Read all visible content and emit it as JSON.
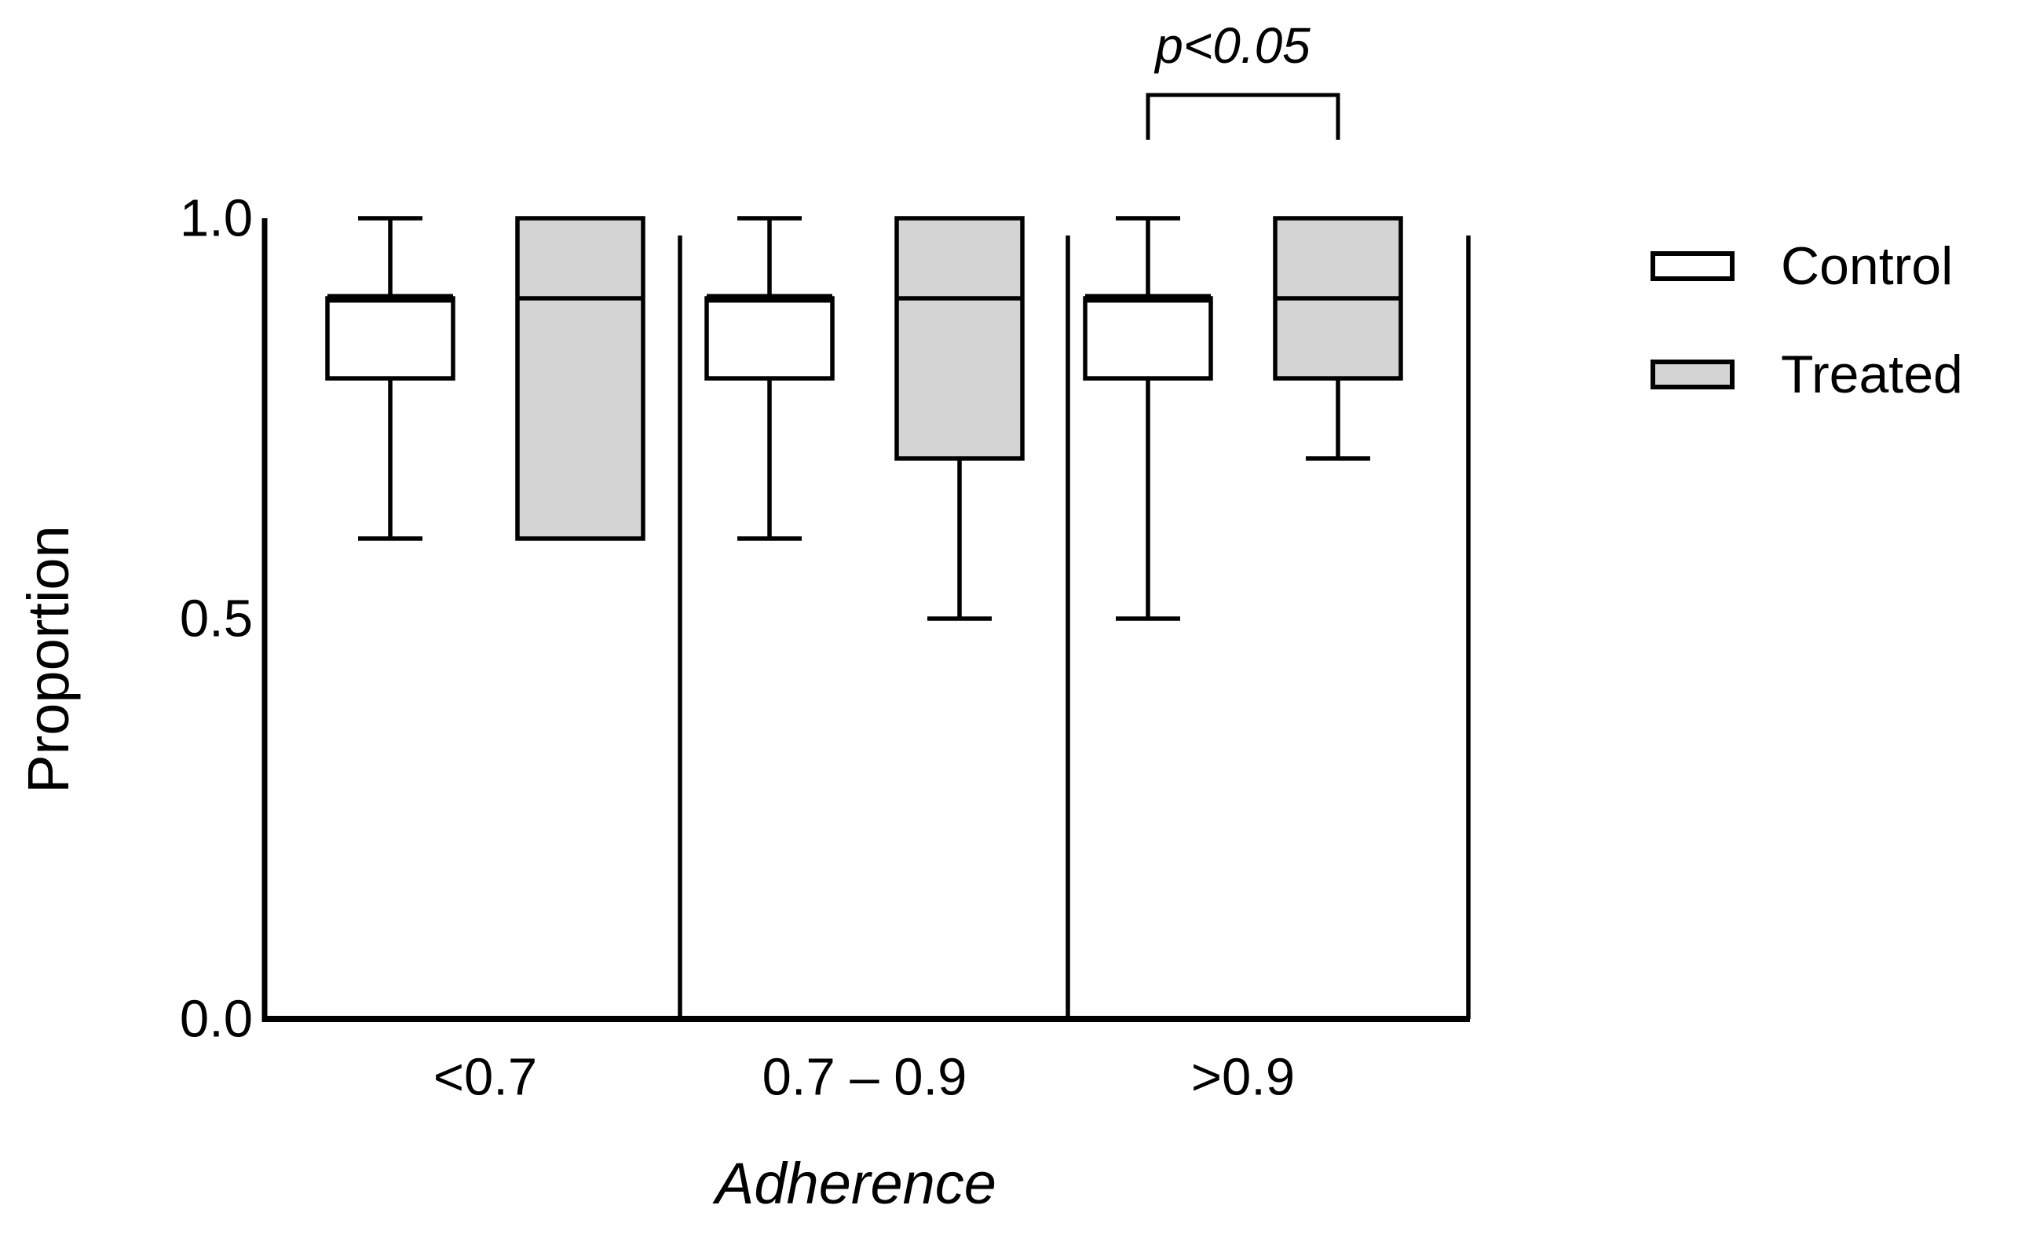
{
  "chart_data": {
    "type": "boxplot",
    "title": "",
    "xlabel": "Adherence",
    "ylabel": "Proportion",
    "ylim": [
      0.0,
      1.0
    ],
    "yticks": [
      1.0,
      0.5,
      0.0
    ],
    "ytick_labels": [
      "1.0",
      "0.5",
      "0.0"
    ],
    "categories": [
      "<0.7",
      "0.7 – 0.9",
      ">0.9"
    ],
    "grid": false,
    "group_separators": true,
    "series": [
      {
        "name": "Control",
        "fill": "#ffffff",
        "boxes": [
          {
            "category": "<0.7",
            "whisker_low": 0.6,
            "q1": 0.8,
            "median": 0.9,
            "q3": 0.9,
            "whisker_high": 1.0
          },
          {
            "category": "0.7 – 0.9",
            "whisker_low": 0.6,
            "q1": 0.8,
            "median": 0.9,
            "q3": 0.9,
            "whisker_high": 1.0
          },
          {
            "category": ">0.9",
            "whisker_low": 0.5,
            "q1": 0.8,
            "median": 0.9,
            "q3": 0.9,
            "whisker_high": 1.0
          }
        ]
      },
      {
        "name": "Treated",
        "fill": "#d4d4d4",
        "boxes": [
          {
            "category": "<0.7",
            "whisker_low": 0.6,
            "q1": 0.6,
            "median": 0.9,
            "q3": 1.0,
            "whisker_high": 1.0
          },
          {
            "category": "0.7 – 0.9",
            "whisker_low": 0.5,
            "q1": 0.7,
            "median": 0.9,
            "q3": 1.0,
            "whisker_high": 1.0
          },
          {
            "category": ">0.9",
            "whisker_low": 0.7,
            "q1": 0.8,
            "median": 0.9,
            "q3": 1.0,
            "whisker_high": 1.0
          }
        ]
      }
    ],
    "annotation": {
      "text": "p<0.05",
      "category": ">0.9",
      "between": [
        "Control",
        "Treated"
      ]
    },
    "legend": {
      "position": "right",
      "entries": [
        {
          "label": "Control",
          "fill": "#ffffff"
        },
        {
          "label": "Treated",
          "fill": "#d4d4d4"
        }
      ]
    },
    "colors": {
      "stroke": "#000000",
      "background": "#ffffff",
      "control_fill": "#ffffff",
      "treated_fill": "#d4d4d4"
    }
  }
}
